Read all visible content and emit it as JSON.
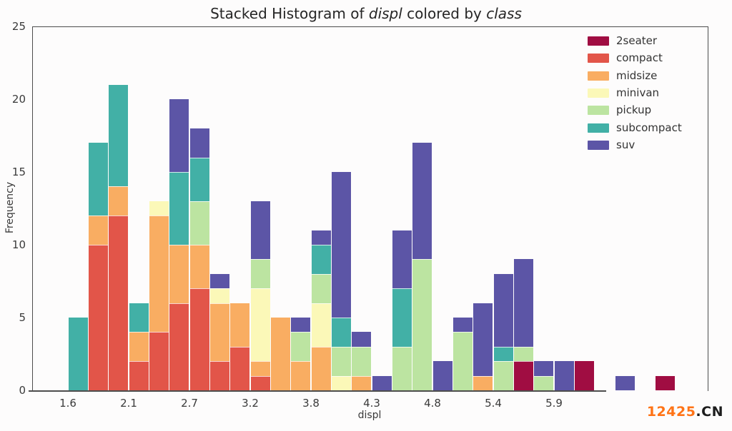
{
  "title": {
    "prefix": "Stacked Histogram of ",
    "var1": "displ",
    "middle": " colored by ",
    "var2": "class"
  },
  "watermark": {
    "number": "12425",
    "suffix": ".CN"
  },
  "chart_data": {
    "type": "bar",
    "subtype": "stacked-histogram",
    "title": "Stacked Histogram of displ colored by class",
    "xlabel": "displ",
    "ylabel": "Frequency",
    "bin_start": 1.6,
    "bin_width": 0.18,
    "n_bins": 30,
    "x_tick_labels": [
      "1.6",
      "2.1",
      "2.7",
      "3.2",
      "3.8",
      "4.3",
      "4.8",
      "5.4",
      "5.9"
    ],
    "x_tick_edge_indices": [
      0,
      3,
      6,
      9,
      12,
      15,
      18,
      21,
      24
    ],
    "y_ticks": [
      0,
      5,
      10,
      15,
      20,
      25
    ],
    "ylim": [
      0,
      25
    ],
    "grid": false,
    "legend_position": "upper right",
    "legend": [
      {
        "label": "2seater",
        "color": "#a00d42"
      },
      {
        "label": "compact",
        "color": "#e25549"
      },
      {
        "label": "midsize",
        "color": "#f9ad62"
      },
      {
        "label": "minivan",
        "color": "#fbf8b8"
      },
      {
        "label": "pickup",
        "color": "#bce4a1"
      },
      {
        "label": "subcompact",
        "color": "#42b0a6"
      },
      {
        "label": "suv",
        "color": "#5c55a6"
      }
    ],
    "series": [
      {
        "name": "2seater",
        "values": [
          0,
          0,
          0,
          0,
          0,
          0,
          0,
          0,
          0,
          0,
          0,
          0,
          0,
          0,
          0,
          0,
          0,
          0,
          0,
          0,
          0,
          0,
          2,
          0,
          0,
          2,
          0,
          0,
          0,
          1
        ]
      },
      {
        "name": "compact",
        "values": [
          0,
          10,
          12,
          2,
          4,
          6,
          7,
          2,
          3,
          1,
          0,
          0,
          0,
          0,
          0,
          0,
          0,
          0,
          0,
          0,
          0,
          0,
          0,
          0,
          0,
          0,
          0,
          0,
          0,
          0
        ]
      },
      {
        "name": "midsize",
        "values": [
          0,
          2,
          2,
          2,
          8,
          4,
          3,
          4,
          3,
          1,
          5,
          2,
          3,
          0,
          1,
          0,
          0,
          0,
          0,
          0,
          1,
          0,
          0,
          0,
          0,
          0,
          0,
          0,
          0,
          0
        ]
      },
      {
        "name": "minivan",
        "values": [
          0,
          0,
          0,
          0,
          1,
          0,
          0,
          1,
          0,
          5,
          0,
          0,
          3,
          1,
          0,
          0,
          0,
          0,
          0,
          0,
          0,
          0,
          0,
          0,
          0,
          0,
          0,
          0,
          0,
          0
        ]
      },
      {
        "name": "pickup",
        "values": [
          0,
          0,
          0,
          0,
          0,
          0,
          3,
          0,
          0,
          2,
          0,
          2,
          2,
          2,
          2,
          0,
          3,
          9,
          0,
          4,
          0,
          2,
          1,
          1,
          0,
          0,
          0,
          0,
          0,
          0
        ]
      },
      {
        "name": "subcompact",
        "values": [
          5,
          5,
          7,
          2,
          0,
          5,
          3,
          0,
          0,
          0,
          0,
          0,
          2,
          2,
          0,
          0,
          4,
          0,
          0,
          0,
          0,
          1,
          0,
          0,
          0,
          0,
          0,
          0,
          0,
          0
        ]
      },
      {
        "name": "suv",
        "values": [
          0,
          0,
          0,
          0,
          0,
          5,
          2,
          1,
          0,
          4,
          0,
          1,
          1,
          10,
          1,
          1,
          4,
          8,
          2,
          1,
          5,
          5,
          6,
          1,
          2,
          0,
          0,
          1,
          0,
          0
        ]
      }
    ],
    "bin_totals": [
      5,
      17,
      21,
      6,
      13,
      20,
      18,
      8,
      6,
      13,
      5,
      5,
      11,
      15,
      4,
      1,
      11,
      17,
      2,
      5,
      6,
      8,
      9,
      2,
      2,
      2,
      0,
      1,
      0,
      1
    ]
  }
}
